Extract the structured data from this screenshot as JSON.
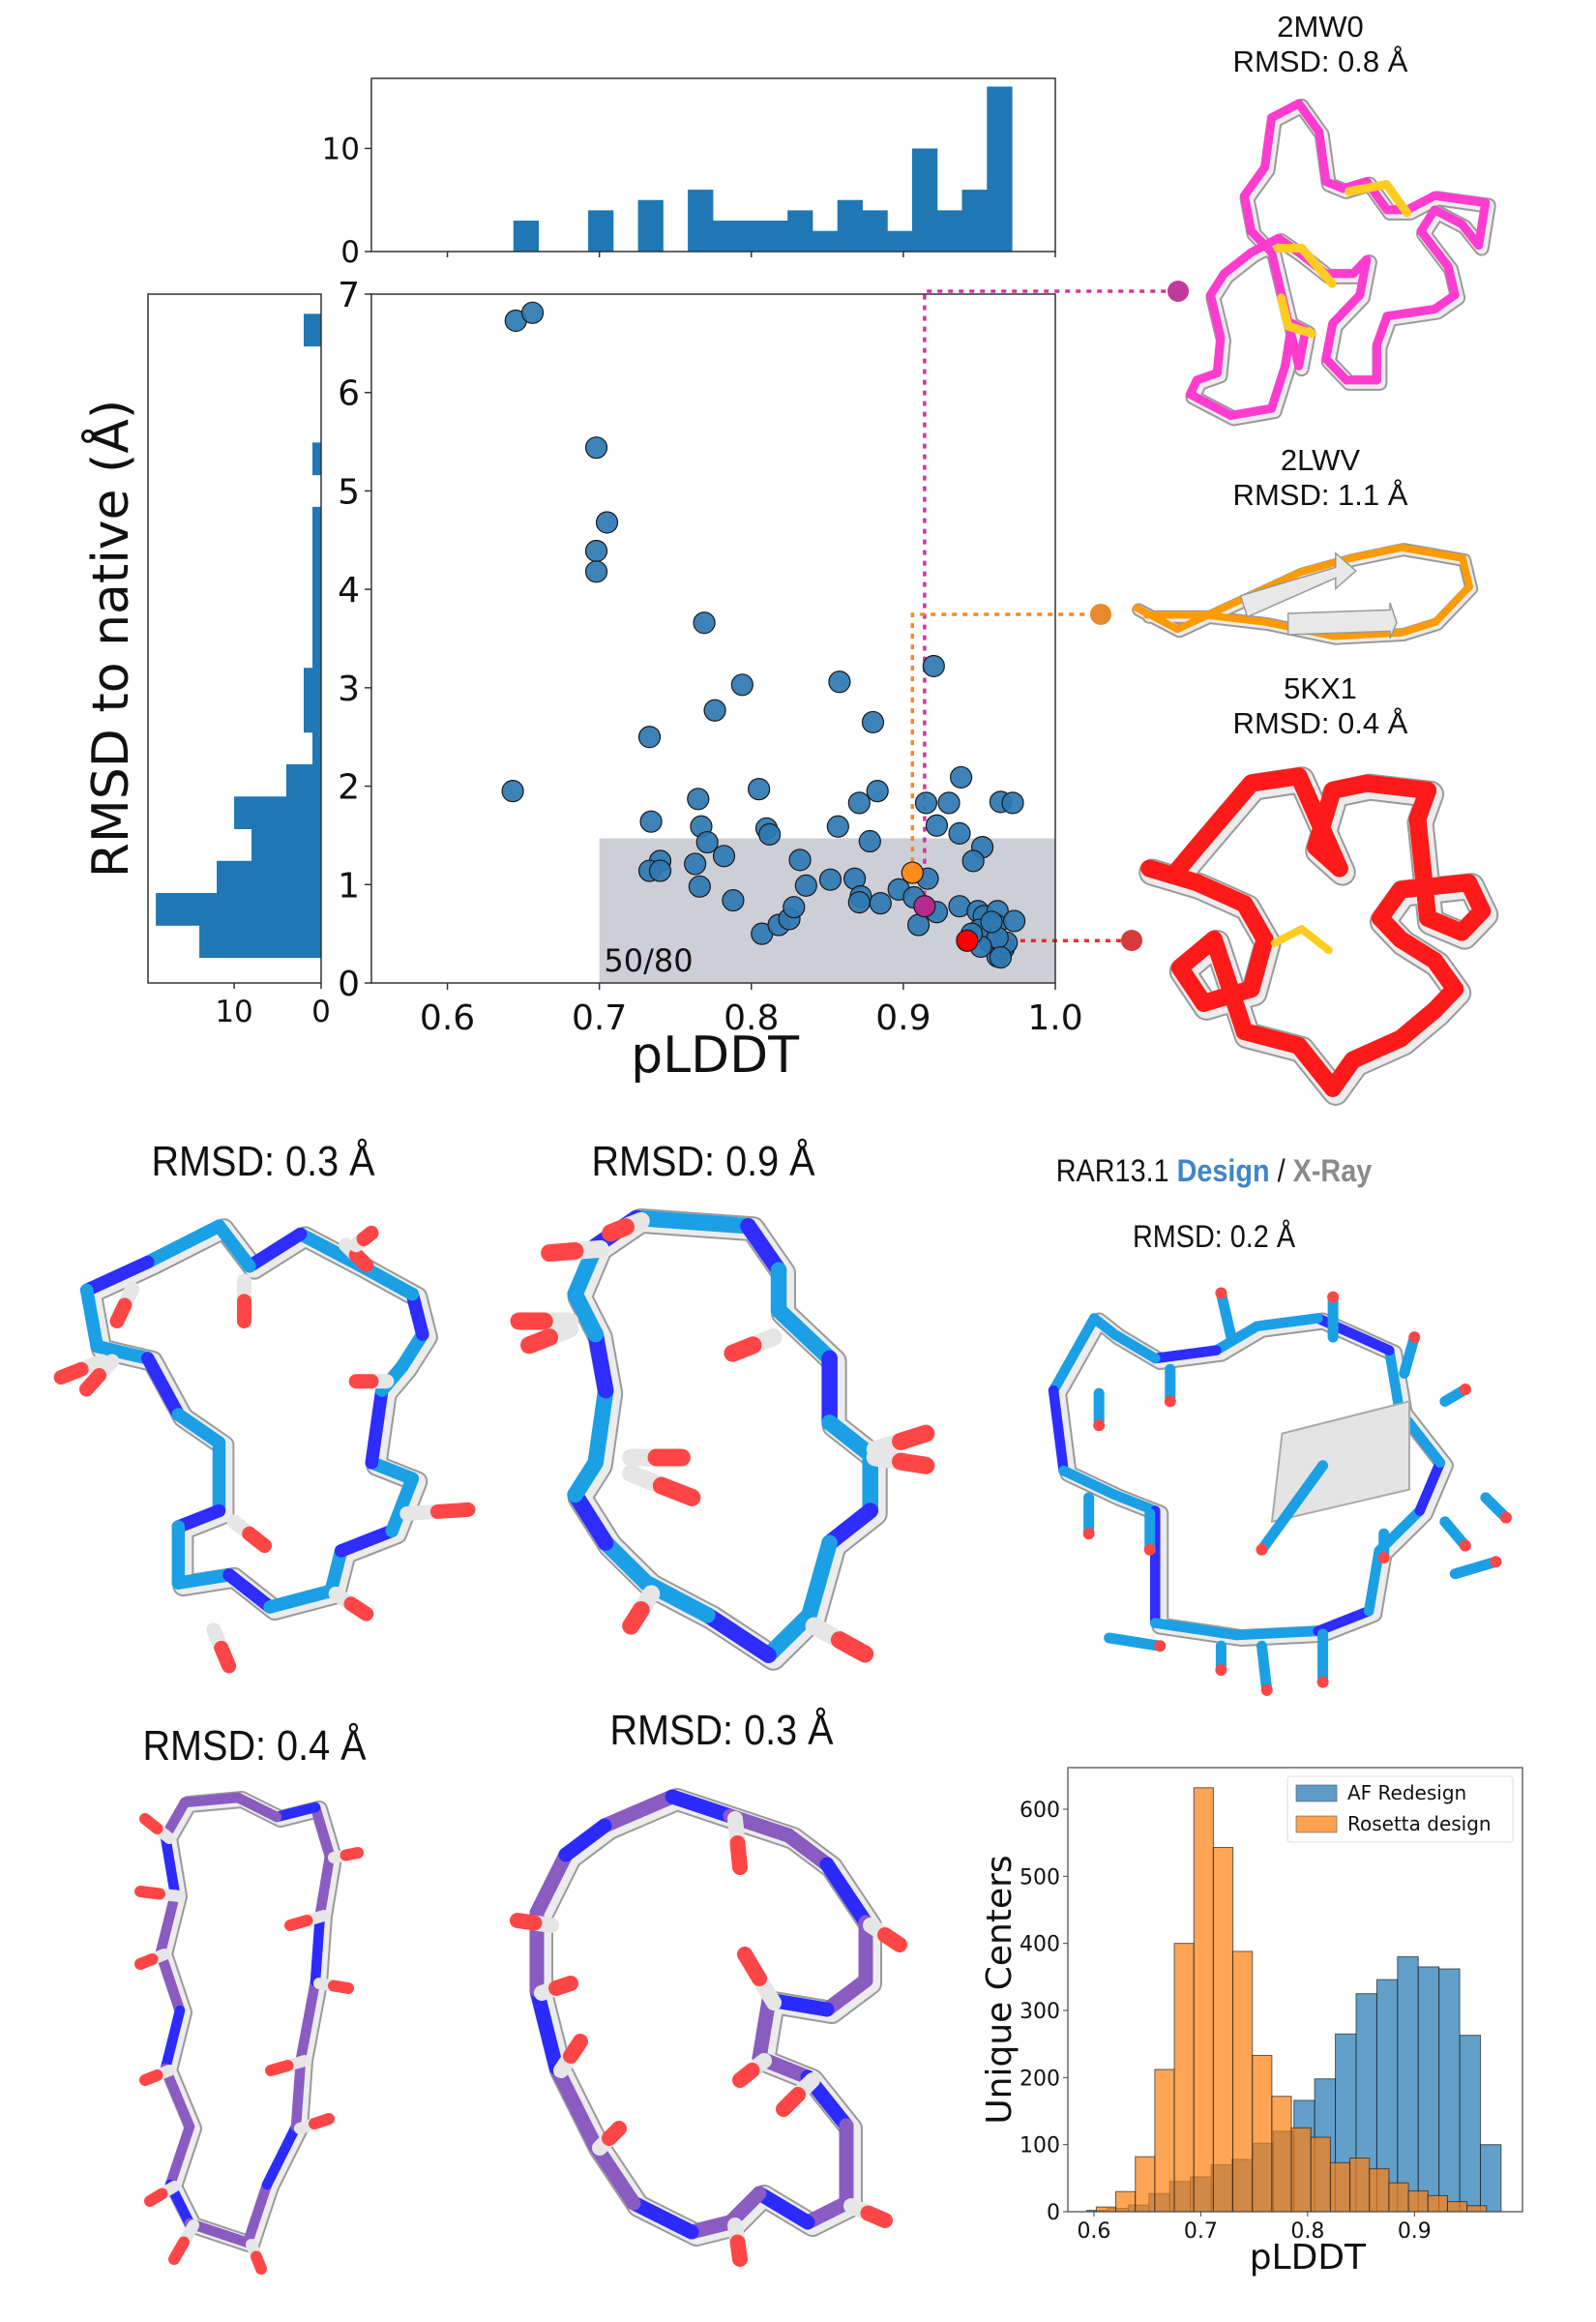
{
  "colors": {
    "hist_blue": "#1f77b4",
    "scatter_blue": "#2e78b2",
    "magenta": "#c0399b",
    "orange": "#e8892c",
    "red": "#ff0000",
    "gray_region": "#c4c5cf",
    "af_blue": "#5d9bc9",
    "rosetta_orange": "#ffa24f"
  },
  "right_structures": [
    {
      "id": "2MW0",
      "rmsd": "RMSD: 0.8 Å",
      "color": "#ff3ccf"
    },
    {
      "id": "2LWV",
      "rmsd": "RMSD: 1.1 Å",
      "color": "#ff9a00"
    },
    {
      "id": "5KX1",
      "rmsd": "RMSD: 0.4 Å",
      "color": "#ff1a1a"
    }
  ],
  "middle_panels": {
    "p1": "RMSD: 0.3 Å",
    "p2": "RMSD: 0.9 Å",
    "rar_name": "RAR13.1",
    "rar_design": "Design",
    "rar_sep": "/",
    "rar_xray": "X-Ray",
    "rar_rmsd": "RMSD: 0.2 Å",
    "p4": "RMSD: 0.4 Å",
    "p5": "RMSD: 0.3 Å"
  },
  "chart_data": [
    {
      "type": "scatter",
      "xlabel": "pLDDT",
      "ylabel": "RMSD to native (Å)",
      "xlim": [
        0.55,
        1.0
      ],
      "ylim": [
        0,
        7
      ],
      "xticks": [
        "0.6",
        "0.7",
        "0.8",
        "0.9",
        "1.0"
      ],
      "yticks": [
        "0",
        "1",
        "2",
        "3",
        "4",
        "5",
        "6",
        "7"
      ],
      "grid": false,
      "region": {
        "x": [
          0.7,
          1.0
        ],
        "y": [
          0,
          1.47
        ],
        "label": "50/80"
      },
      "points": [
        [
          0.645,
          6.73
        ],
        [
          0.656,
          6.81
        ],
        [
          0.698,
          5.44
        ],
        [
          0.698,
          4.39
        ],
        [
          0.698,
          4.18
        ],
        [
          0.705,
          4.68
        ],
        [
          0.769,
          3.66
        ],
        [
          0.794,
          3.03
        ],
        [
          0.776,
          2.77
        ],
        [
          0.733,
          2.5
        ],
        [
          0.643,
          1.95
        ],
        [
          0.858,
          3.06
        ],
        [
          0.88,
          2.65
        ],
        [
          0.92,
          3.22
        ],
        [
          0.734,
          1.64
        ],
        [
          0.765,
          1.87
        ],
        [
          0.767,
          1.59
        ],
        [
          0.771,
          1.43
        ],
        [
          0.782,
          1.29
        ],
        [
          0.763,
          1.21
        ],
        [
          0.766,
          0.98
        ],
        [
          0.74,
          1.24
        ],
        [
          0.733,
          1.14
        ],
        [
          0.74,
          1.14
        ],
        [
          0.788,
          0.84
        ],
        [
          0.805,
          1.97
        ],
        [
          0.81,
          1.57
        ],
        [
          0.812,
          1.51
        ],
        [
          0.832,
          1.25
        ],
        [
          0.836,
          0.99
        ],
        [
          0.807,
          0.5
        ],
        [
          0.818,
          0.59
        ],
        [
          0.825,
          0.65
        ],
        [
          0.828,
          0.77
        ],
        [
          0.852,
          1.05
        ],
        [
          0.857,
          1.59
        ],
        [
          0.871,
          1.83
        ],
        [
          0.883,
          1.95
        ],
        [
          0.878,
          1.44
        ],
        [
          0.868,
          1.06
        ],
        [
          0.872,
          0.88
        ],
        [
          0.871,
          0.82
        ],
        [
          0.885,
          0.81
        ],
        [
          0.897,
          0.95
        ],
        [
          0.907,
          0.87
        ],
        [
          0.916,
          1.06
        ],
        [
          0.915,
          1.83
        ],
        [
          0.93,
          1.83
        ],
        [
          0.922,
          1.6
        ],
        [
          0.938,
          2.09
        ],
        [
          0.937,
          1.52
        ],
        [
          0.952,
          1.38
        ],
        [
          0.946,
          1.24
        ],
        [
          0.91,
          0.59
        ],
        [
          0.922,
          0.72
        ],
        [
          0.937,
          0.78
        ],
        [
          0.949,
          0.73
        ],
        [
          0.953,
          0.68
        ],
        [
          0.962,
          0.73
        ],
        [
          0.961,
          0.59
        ],
        [
          0.973,
          0.63
        ],
        [
          0.957,
          0.42
        ],
        [
          0.962,
          0.27
        ],
        [
          0.966,
          0.35
        ],
        [
          0.968,
          0.41
        ],
        [
          0.95,
          0.54
        ],
        [
          0.962,
          0.46
        ],
        [
          0.964,
          0.26
        ],
        [
          0.951,
          0.37
        ],
        [
          0.964,
          1.84
        ],
        [
          0.972,
          1.83
        ],
        [
          0.958,
          0.62
        ],
        [
          0.945,
          0.5
        ]
      ],
      "highlighted": [
        {
          "structure": "2MW0",
          "x": 0.914,
          "y": 0.78,
          "color": "#b52a8f"
        },
        {
          "structure": "2LWV",
          "x": 0.906,
          "y": 1.12,
          "color": "#ff8c1a"
        },
        {
          "structure": "5KX1",
          "x": 0.942,
          "y": 0.43,
          "color": "#ff0000"
        }
      ]
    },
    {
      "type": "bar",
      "role": "top marginal histogram of pLDDT",
      "bin_start": 0.6434,
      "bin_width": 0.0164,
      "counts": [
        3,
        0,
        0,
        4,
        0,
        5,
        0,
        6,
        3,
        3,
        3,
        4,
        2,
        5,
        4,
        2,
        10,
        4,
        6,
        16
      ],
      "yticks": [
        "0",
        "10"
      ],
      "ylim": [
        0,
        16.8
      ]
    },
    {
      "type": "bar",
      "role": "left marginal histogram of RMSD",
      "orientation": "horizontal",
      "bin_start": 0.26,
      "bin_width": 0.327,
      "counts": [
        14,
        19,
        12,
        8,
        10,
        4,
        1,
        2,
        2,
        1,
        1,
        1,
        1,
        1,
        0,
        1,
        0,
        0,
        0,
        2
      ],
      "xticks": [
        "10",
        "0"
      ],
      "xlim": [
        19.9,
        0
      ]
    },
    {
      "type": "bar",
      "role": "overlapping histograms",
      "xlabel": "pLDDT",
      "ylabel": "Unique Centers",
      "xlim": [
        0.5756,
        1.0011
      ],
      "ylim": [
        0,
        662
      ],
      "xticks": [
        "0.6",
        "0.7",
        "0.8",
        "0.9"
      ],
      "yticks": [
        "0",
        "100",
        "200",
        "300",
        "400",
        "500",
        "600"
      ],
      "legend": "top-right",
      "series": [
        {
          "name": "AF Redesign",
          "bin_start": 0.5933,
          "bin_width": 0.01939,
          "counts": [
            2,
            5,
            10,
            27,
            45,
            52,
            70,
            78,
            102,
            120,
            166,
            198,
            265,
            325,
            346,
            380,
            365,
            362,
            263,
            100
          ]
        },
        {
          "name": "Rosetta design",
          "bin_start": 0.6022,
          "bin_width": 0.01826,
          "counts": [
            7,
            30,
            82,
            212,
            400,
            632,
            543,
            388,
            233,
            172,
            125,
            111,
            73,
            80,
            64,
            43,
            31,
            24,
            15,
            9
          ]
        }
      ]
    }
  ]
}
